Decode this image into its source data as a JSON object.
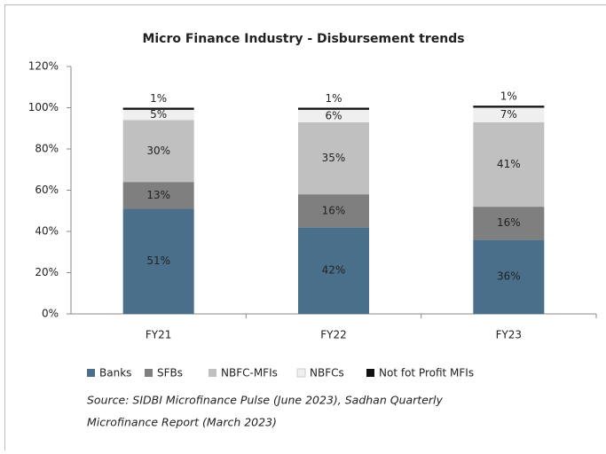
{
  "chart_data": {
    "type": "stacked_bar",
    "title": "Micro Finance Industry - Disbursement trends",
    "categories": [
      "FY21",
      "FY22",
      "FY23"
    ],
    "series": [
      {
        "name": "Banks",
        "color": "#4a6f8a",
        "values": [
          51,
          42,
          36
        ],
        "value_labels": [
          "51%",
          "42%",
          "36%"
        ]
      },
      {
        "name": "SFBs",
        "color": "#7f7f7f",
        "values": [
          13,
          16,
          16
        ],
        "value_labels": [
          "13%",
          "16%",
          "16%"
        ]
      },
      {
        "name": "NBFC-MFIs",
        "color": "#c0c0c0",
        "values": [
          30,
          35,
          41
        ],
        "value_labels": [
          "30%",
          "35%",
          "41%"
        ]
      },
      {
        "name": "NBFCs",
        "color": "#efefef",
        "values": [
          5,
          6,
          7
        ],
        "value_labels": [
          "5%",
          "6%",
          "7%"
        ]
      },
      {
        "name": "Not fot Profit MFIs",
        "color": "#111111",
        "values": [
          1,
          1,
          1
        ],
        "value_labels": [
          "1%",
          "1%",
          "1%"
        ]
      }
    ],
    "ylim": [
      0,
      120
    ],
    "yticks": [
      {
        "value": 0,
        "label": "0%"
      },
      {
        "value": 20,
        "label": "20%"
      },
      {
        "value": 40,
        "label": "40%"
      },
      {
        "value": 60,
        "label": "60%"
      },
      {
        "value": 80,
        "label": "80%"
      },
      {
        "value": 100,
        "label": "100%"
      },
      {
        "value": 120,
        "label": "120%"
      }
    ],
    "legend": "bottom",
    "source": [
      "Source: SIDBI Microfinance Pulse (June 2023), Sadhan Quarterly",
      "Microfinance Report (March 2023)"
    ]
  }
}
